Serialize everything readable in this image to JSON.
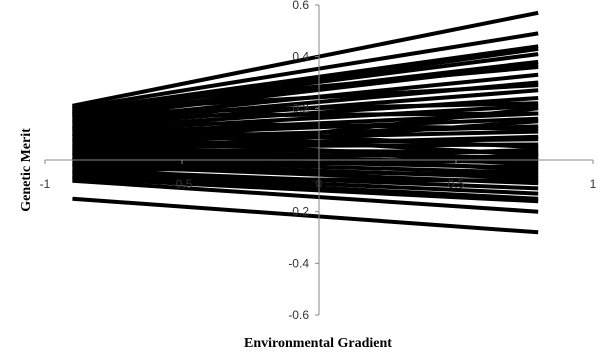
{
  "chart_data": {
    "type": "line",
    "xlabel": "Environmental Gradient",
    "ylabel": "Genetic Merit",
    "xlim": [
      -1,
      1
    ],
    "ylim": [
      -0.6,
      0.6
    ],
    "x_ticks": [
      "-1",
      "-0.5",
      "0",
      "0.5",
      "1"
    ],
    "y_ticks": [
      "0.6",
      "0.4",
      "0.2",
      "-0.2",
      "-0.4",
      "-0.6"
    ],
    "grid": false,
    "line_color": "#000000",
    "x": [
      -0.9,
      0.8
    ],
    "series": [
      {
        "values": [
          0.21,
          0.57
        ]
      },
      {
        "values": [
          0.2,
          0.49
        ]
      },
      {
        "values": [
          0.19,
          0.44
        ]
      },
      {
        "values": [
          0.18,
          0.43
        ]
      },
      {
        "values": [
          0.18,
          0.41
        ]
      },
      {
        "values": [
          0.17,
          0.38
        ]
      },
      {
        "values": [
          0.16,
          0.37
        ]
      },
      {
        "values": [
          0.15,
          0.33
        ]
      },
      {
        "values": [
          0.14,
          0.3
        ]
      },
      {
        "values": [
          0.13,
          0.27
        ]
      },
      {
        "values": [
          0.12,
          0.24
        ]
      },
      {
        "values": [
          0.11,
          0.21
        ]
      },
      {
        "values": [
          0.1,
          0.18
        ]
      },
      {
        "values": [
          0.09,
          0.16
        ]
      },
      {
        "values": [
          0.08,
          0.13
        ]
      },
      {
        "values": [
          0.07,
          0.11
        ]
      },
      {
        "values": [
          0.06,
          0.08
        ]
      },
      {
        "values": [
          0.05,
          0.06
        ]
      },
      {
        "values": [
          0.04,
          0.03
        ]
      },
      {
        "values": [
          0.03,
          0.01
        ]
      },
      {
        "values": [
          0.02,
          -0.01
        ]
      },
      {
        "values": [
          0.01,
          -0.03
        ]
      },
      {
        "values": [
          0.0,
          -0.05
        ]
      },
      {
        "values": [
          -0.01,
          -0.07
        ]
      },
      {
        "values": [
          -0.02,
          -0.09
        ]
      },
      {
        "values": [
          -0.04,
          -0.11
        ]
      },
      {
        "values": [
          -0.05,
          -0.13
        ]
      },
      {
        "values": [
          -0.06,
          -0.15
        ]
      },
      {
        "values": [
          -0.07,
          -0.16
        ]
      },
      {
        "values": [
          -0.07,
          -0.08
        ]
      },
      {
        "values": [
          -0.08,
          -0.2
        ]
      },
      {
        "values": [
          -0.15,
          -0.28
        ]
      },
      {
        "values": [
          0.2,
          0.36
        ]
      },
      {
        "values": [
          0.19,
          0.29
        ]
      },
      {
        "values": [
          0.18,
          0.22
        ]
      },
      {
        "values": [
          0.17,
          0.18
        ]
      },
      {
        "values": [
          0.15,
          0.12
        ]
      },
      {
        "values": [
          0.13,
          0.05
        ]
      },
      {
        "values": [
          0.12,
          0.02
        ]
      },
      {
        "values": [
          0.1,
          -0.02
        ]
      },
      {
        "values": [
          0.08,
          0.0
        ]
      },
      {
        "values": [
          0.06,
          -0.04
        ]
      },
      {
        "values": [
          0.04,
          0.09
        ]
      },
      {
        "values": [
          0.02,
          0.15
        ]
      },
      {
        "values": [
          0.0,
          0.2
        ]
      },
      {
        "values": [
          -0.02,
          0.04
        ]
      },
      {
        "values": [
          -0.03,
          -0.06
        ]
      },
      {
        "values": [
          -0.05,
          0.02
        ]
      }
    ]
  }
}
